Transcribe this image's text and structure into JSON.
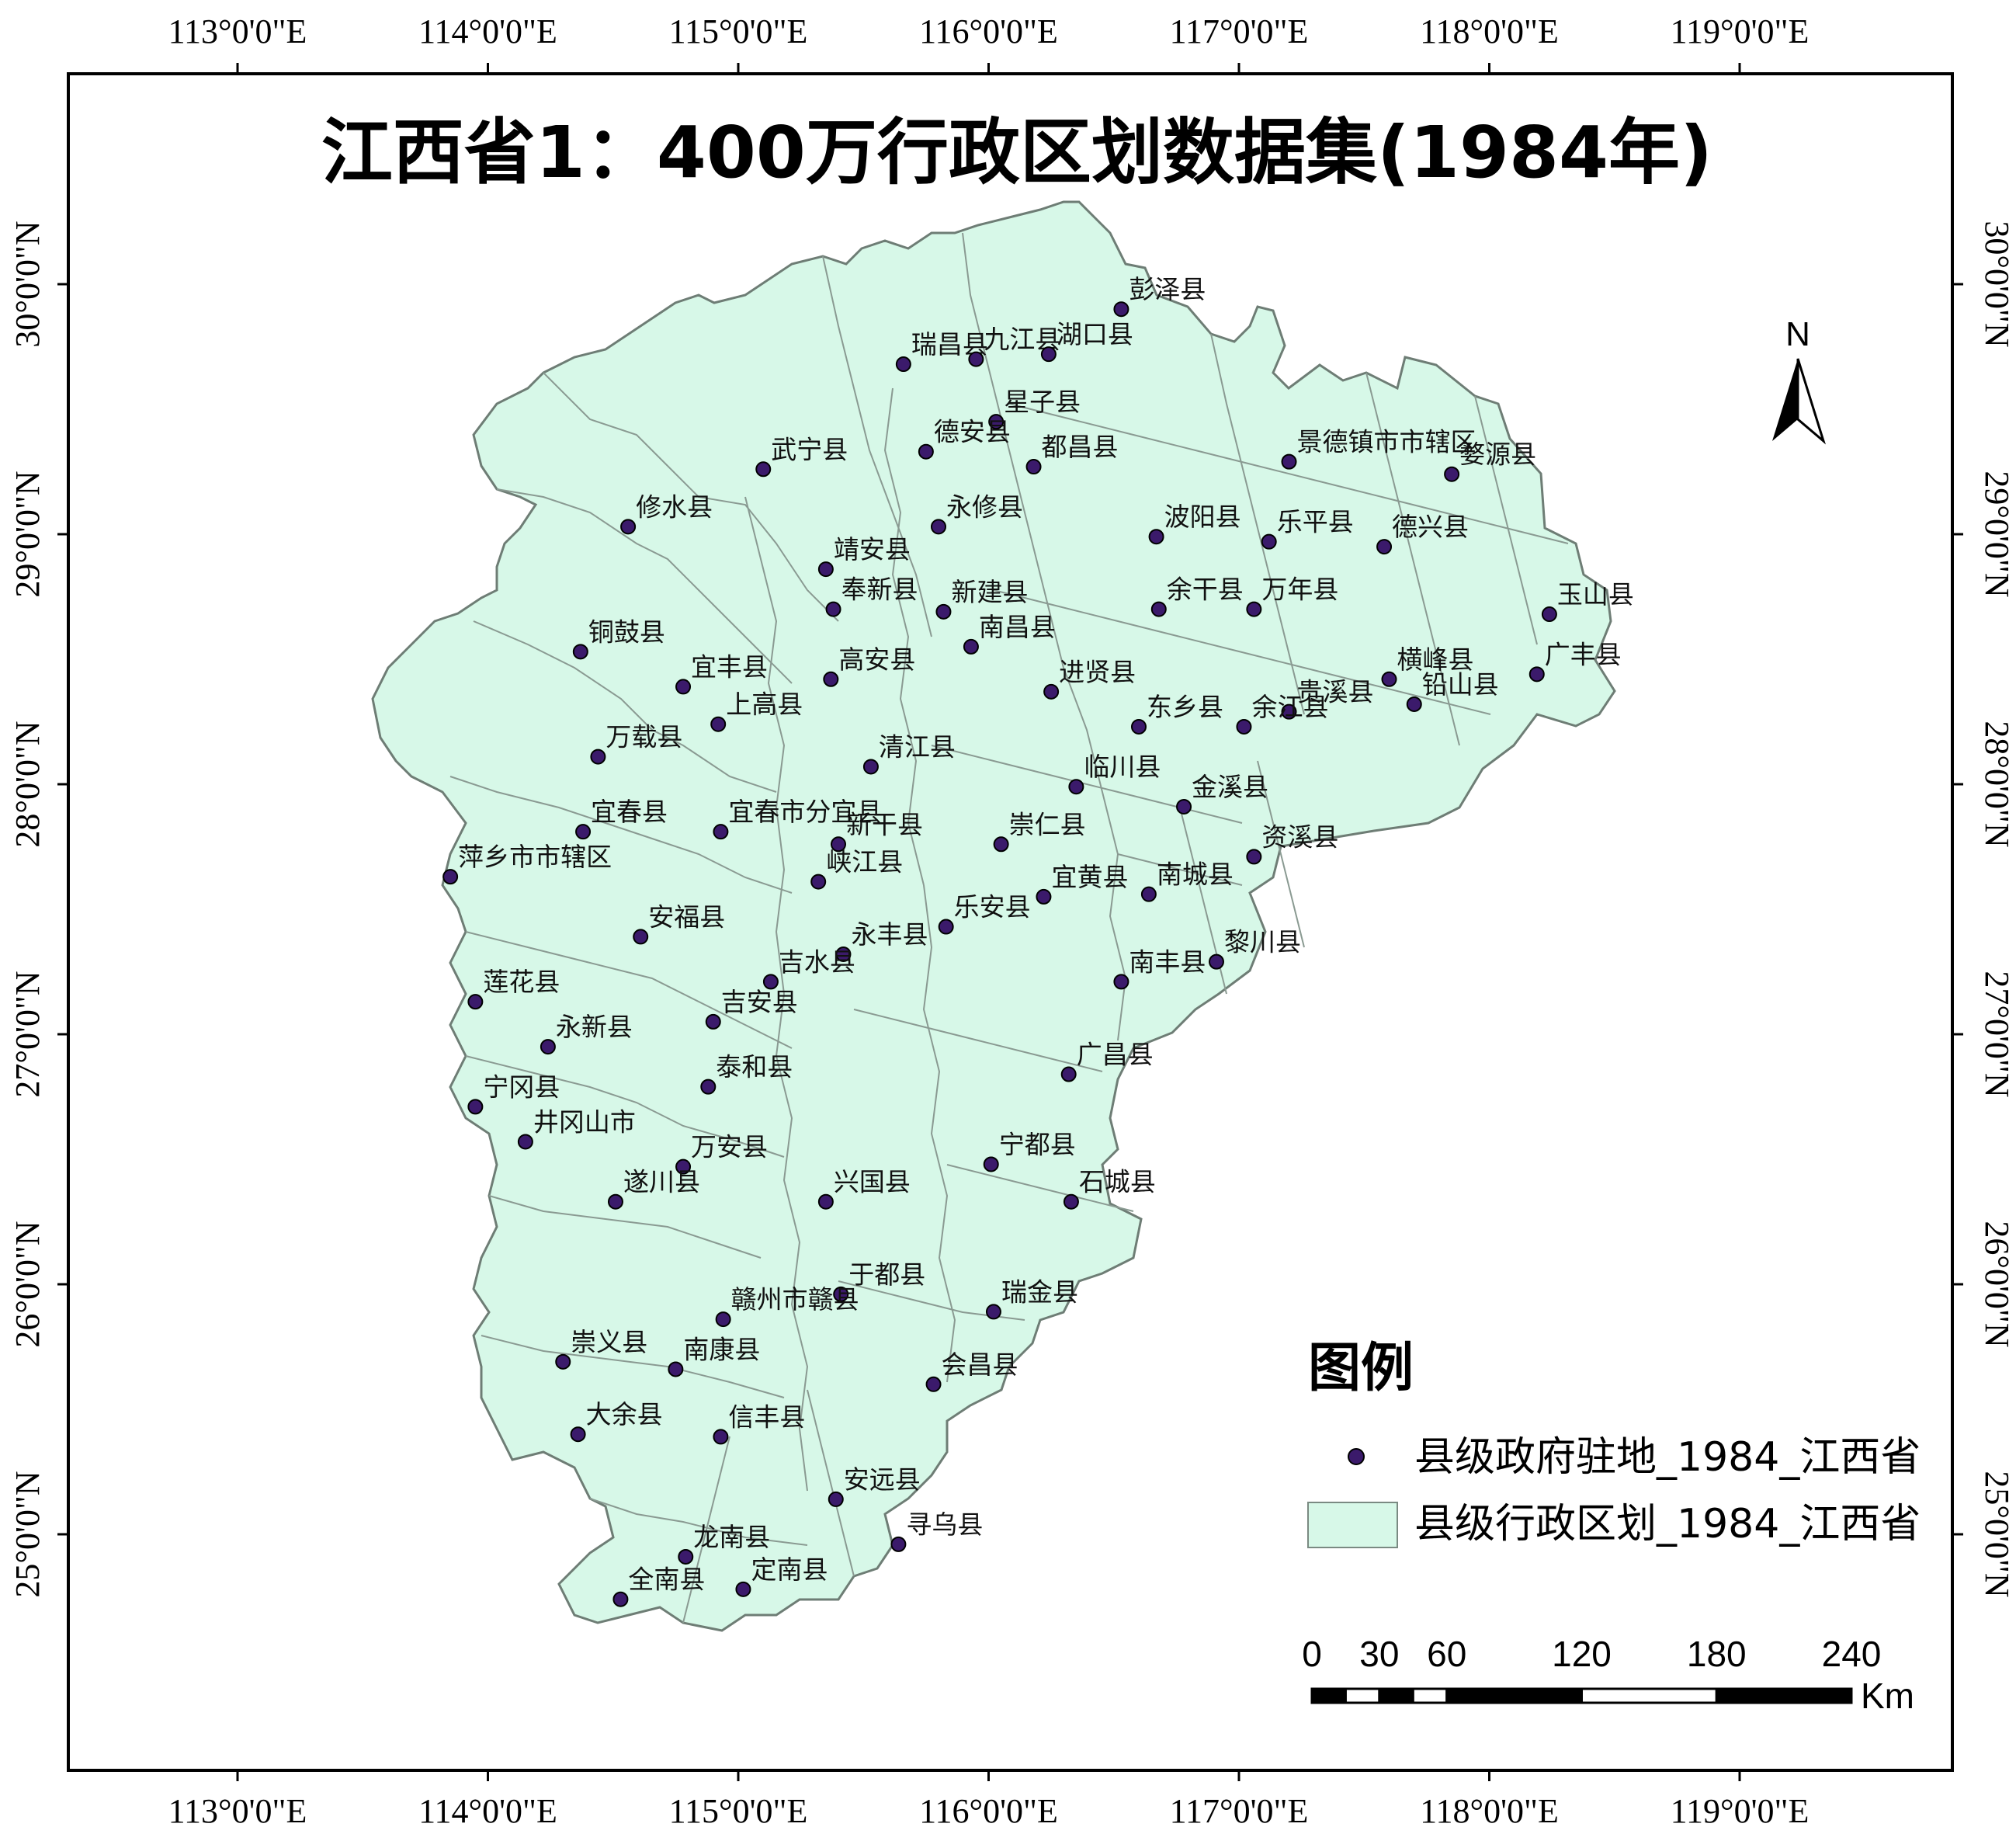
{
  "title": "江西省1：400万行政区划数据集(1984年)",
  "axes": {
    "lon_labels": [
      "113°0'0\"E",
      "114°0'0\"E",
      "115°0'0\"E",
      "116°0'0\"E",
      "117°0'0\"E",
      "118°0'0\"E",
      "119°0'0\"E"
    ],
    "lon_values": [
      113,
      114,
      115,
      116,
      117,
      118,
      119
    ],
    "lat_labels": [
      "25°0'0\"N",
      "26°0'0\"N",
      "27°0'0\"N",
      "28°0'0\"N",
      "29°0'0\"N",
      "30°0'0\"N"
    ],
    "lat_values": [
      25,
      26,
      27,
      28,
      29,
      30
    ]
  },
  "north_arrow": {
    "label": "N"
  },
  "legend": {
    "title": "图例",
    "items": [
      {
        "label": "县级政府驻地_1984_江西省",
        "symbol": "point",
        "color": "#3b1a6b"
      },
      {
        "label": "县级行政区划_1984_江西省",
        "symbol": "polygon",
        "color": "#d7f8e8"
      }
    ]
  },
  "scale_bar": {
    "labels": [
      "0",
      "30",
      "60",
      "120",
      "180",
      "240"
    ],
    "values": [
      0,
      30,
      60,
      120,
      180,
      240
    ],
    "unit": "Km"
  },
  "colors": {
    "land": "#d7f8e8",
    "border": "#7a8a82",
    "point": "#3b1a6b"
  },
  "cities": [
    {
      "name": "彭泽县",
      "lon": 116.53,
      "lat": 29.9
    },
    {
      "name": "瑞昌县",
      "lon": 115.66,
      "lat": 29.68
    },
    {
      "name": "九江县",
      "lon": 115.95,
      "lat": 29.7
    },
    {
      "name": "湖口县",
      "lon": 116.24,
      "lat": 29.72
    },
    {
      "name": "星子县",
      "lon": 116.03,
      "lat": 29.45
    },
    {
      "name": "德安县",
      "lon": 115.75,
      "lat": 29.33
    },
    {
      "name": "都昌县",
      "lon": 116.18,
      "lat": 29.27
    },
    {
      "name": "武宁县",
      "lon": 115.1,
      "lat": 29.26
    },
    {
      "name": "修水县",
      "lon": 114.56,
      "lat": 29.03
    },
    {
      "name": "永修县",
      "lon": 115.8,
      "lat": 29.03
    },
    {
      "name": "景德镇市市辖区",
      "lon": 117.2,
      "lat": 29.29
    },
    {
      "name": "婺源县",
      "lon": 117.85,
      "lat": 29.24
    },
    {
      "name": "波阳县",
      "lon": 116.67,
      "lat": 28.99
    },
    {
      "name": "乐平县",
      "lon": 117.12,
      "lat": 28.97
    },
    {
      "name": "德兴县",
      "lon": 117.58,
      "lat": 28.95
    },
    {
      "name": "靖安县",
      "lon": 115.35,
      "lat": 28.86
    },
    {
      "name": "奉新县",
      "lon": 115.38,
      "lat": 28.7
    },
    {
      "name": "新建县",
      "lon": 115.82,
      "lat": 28.69
    },
    {
      "name": "南昌县",
      "lon": 115.93,
      "lat": 28.55
    },
    {
      "name": "余干县",
      "lon": 116.68,
      "lat": 28.7
    },
    {
      "name": "万年县",
      "lon": 117.06,
      "lat": 28.7
    },
    {
      "name": "玉山县",
      "lon": 118.24,
      "lat": 28.68
    },
    {
      "name": "铜鼓县",
      "lon": 114.37,
      "lat": 28.53
    },
    {
      "name": "宜丰县",
      "lon": 114.78,
      "lat": 28.39
    },
    {
      "name": "高安县",
      "lon": 115.37,
      "lat": 28.42
    },
    {
      "name": "进贤县",
      "lon": 116.25,
      "lat": 28.37
    },
    {
      "name": "横峰县",
      "lon": 117.6,
      "lat": 28.42
    },
    {
      "name": "铅山县",
      "lon": 117.7,
      "lat": 28.32
    },
    {
      "name": "广丰县",
      "lon": 118.19,
      "lat": 28.44
    },
    {
      "name": "贵溪县",
      "lon": 117.2,
      "lat": 28.29
    },
    {
      "name": "余江县",
      "lon": 117.02,
      "lat": 28.23
    },
    {
      "name": "上高县",
      "lon": 114.92,
      "lat": 28.24
    },
    {
      "name": "万载县",
      "lon": 114.44,
      "lat": 28.11
    },
    {
      "name": "清江县",
      "lon": 115.53,
      "lat": 28.07
    },
    {
      "name": "东乡县",
      "lon": 116.6,
      "lat": 28.23
    },
    {
      "name": "临川县",
      "lon": 116.35,
      "lat": 27.99
    },
    {
      "name": "金溪县",
      "lon": 116.78,
      "lat": 27.91
    },
    {
      "name": "宜春市分宜县",
      "lon": 114.93,
      "lat": 27.81
    },
    {
      "name": "宜春县",
      "lon": 114.38,
      "lat": 27.81
    },
    {
      "name": "新干县",
      "lon": 115.4,
      "lat": 27.76
    },
    {
      "name": "崇仁县",
      "lon": 116.05,
      "lat": 27.76
    },
    {
      "name": "资溪县",
      "lon": 117.06,
      "lat": 27.71
    },
    {
      "name": "萍乡市市辖区",
      "lon": 113.85,
      "lat": 27.63
    },
    {
      "name": "峡江县",
      "lon": 115.32,
      "lat": 27.61
    },
    {
      "name": "宜黄县",
      "lon": 116.22,
      "lat": 27.55
    },
    {
      "name": "南城县",
      "lon": 116.64,
      "lat": 27.56
    },
    {
      "name": "安福县",
      "lon": 114.61,
      "lat": 27.39
    },
    {
      "name": "乐安县",
      "lon": 115.83,
      "lat": 27.43
    },
    {
      "name": "永丰县",
      "lon": 115.42,
      "lat": 27.32
    },
    {
      "name": "黎川县",
      "lon": 116.91,
      "lat": 27.29
    },
    {
      "name": "吉水县",
      "lon": 115.13,
      "lat": 27.21
    },
    {
      "name": "南丰县",
      "lon": 116.53,
      "lat": 27.21
    },
    {
      "name": "莲花县",
      "lon": 113.95,
      "lat": 27.13
    },
    {
      "name": "吉安县",
      "lon": 114.9,
      "lat": 27.05
    },
    {
      "name": "永新县",
      "lon": 114.24,
      "lat": 26.95
    },
    {
      "name": "广昌县",
      "lon": 116.32,
      "lat": 26.84
    },
    {
      "name": "泰和县",
      "lon": 114.88,
      "lat": 26.79
    },
    {
      "name": "宁冈县",
      "lon": 113.95,
      "lat": 26.71
    },
    {
      "name": "井冈山市",
      "lon": 114.15,
      "lat": 26.57
    },
    {
      "name": "万安县",
      "lon": 114.78,
      "lat": 26.47
    },
    {
      "name": "宁都县",
      "lon": 116.01,
      "lat": 26.48
    },
    {
      "name": "遂川县",
      "lon": 114.51,
      "lat": 26.33
    },
    {
      "name": "兴国县",
      "lon": 115.35,
      "lat": 26.33
    },
    {
      "name": "石城县",
      "lon": 116.33,
      "lat": 26.33
    },
    {
      "name": "于都县",
      "lon": 115.41,
      "lat": 25.96
    },
    {
      "name": "赣州市赣县",
      "lon": 114.94,
      "lat": 25.86
    },
    {
      "name": "瑞金县",
      "lon": 116.02,
      "lat": 25.89
    },
    {
      "name": "崇义县",
      "lon": 114.3,
      "lat": 25.69
    },
    {
      "name": "南康县",
      "lon": 114.75,
      "lat": 25.66
    },
    {
      "name": "会昌县",
      "lon": 115.78,
      "lat": 25.6
    },
    {
      "name": "大余县",
      "lon": 114.36,
      "lat": 25.4
    },
    {
      "name": "信丰县",
      "lon": 114.93,
      "lat": 25.39
    },
    {
      "name": "安远县",
      "lon": 115.39,
      "lat": 25.14
    },
    {
      "name": "寻乌县",
      "lon": 115.64,
      "lat": 24.96
    },
    {
      "name": "龙南县",
      "lon": 114.79,
      "lat": 24.91
    },
    {
      "name": "定南县",
      "lon": 115.02,
      "lat": 24.78
    },
    {
      "name": "全南县",
      "lon": 114.53,
      "lat": 24.74
    }
  ]
}
